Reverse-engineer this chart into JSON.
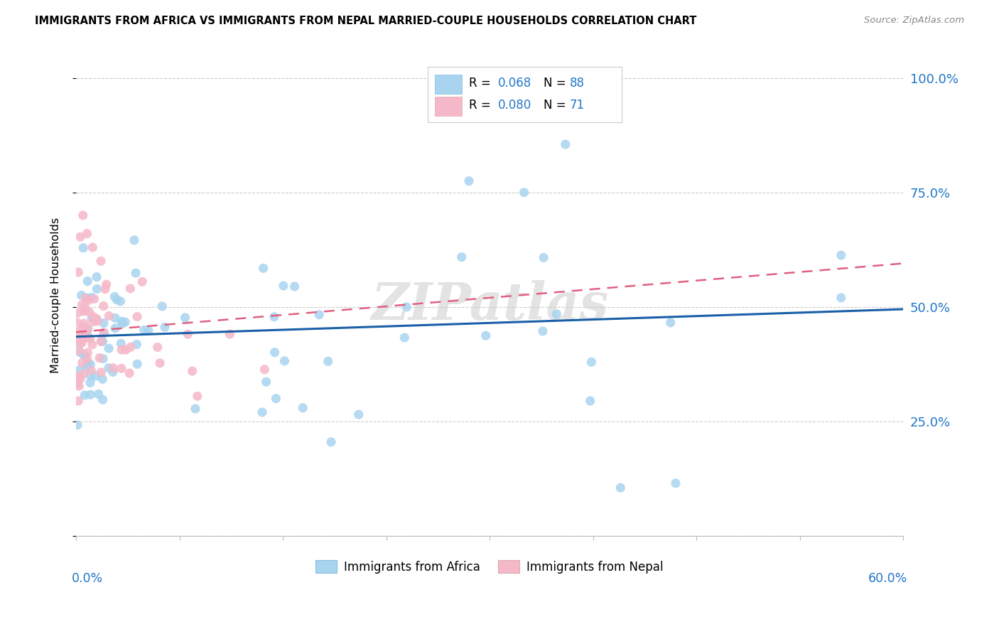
{
  "title": "IMMIGRANTS FROM AFRICA VS IMMIGRANTS FROM NEPAL MARRIED-COUPLE HOUSEHOLDS CORRELATION CHART",
  "source": "Source: ZipAtlas.com",
  "ylabel": "Married-couple Households",
  "xlim": [
    0.0,
    0.6
  ],
  "ylim": [
    0.0,
    1.05
  ],
  "yticks": [
    0.0,
    0.25,
    0.5,
    0.75,
    1.0
  ],
  "ytick_labels": [
    "",
    "25.0%",
    "50.0%",
    "75.0%",
    "100.0%"
  ],
  "legend_r_africa": "R = 0.068",
  "legend_n_africa": "N = 88",
  "legend_r_nepal": "R = 0.080",
  "legend_n_nepal": "N = 71",
  "color_africa": "#a8d4f0",
  "color_nepal": "#f5b8c8",
  "color_africa_line": "#1a5fa8",
  "color_nepal_line": "#e06080",
  "color_text_blue": "#2176c7",
  "watermark": "ZIPatlas",
  "africa_line_x": [
    0.0,
    0.6
  ],
  "africa_line_y": [
    0.435,
    0.495
  ],
  "nepal_line_x": [
    0.0,
    0.6
  ],
  "nepal_line_y": [
    0.445,
    0.595
  ]
}
